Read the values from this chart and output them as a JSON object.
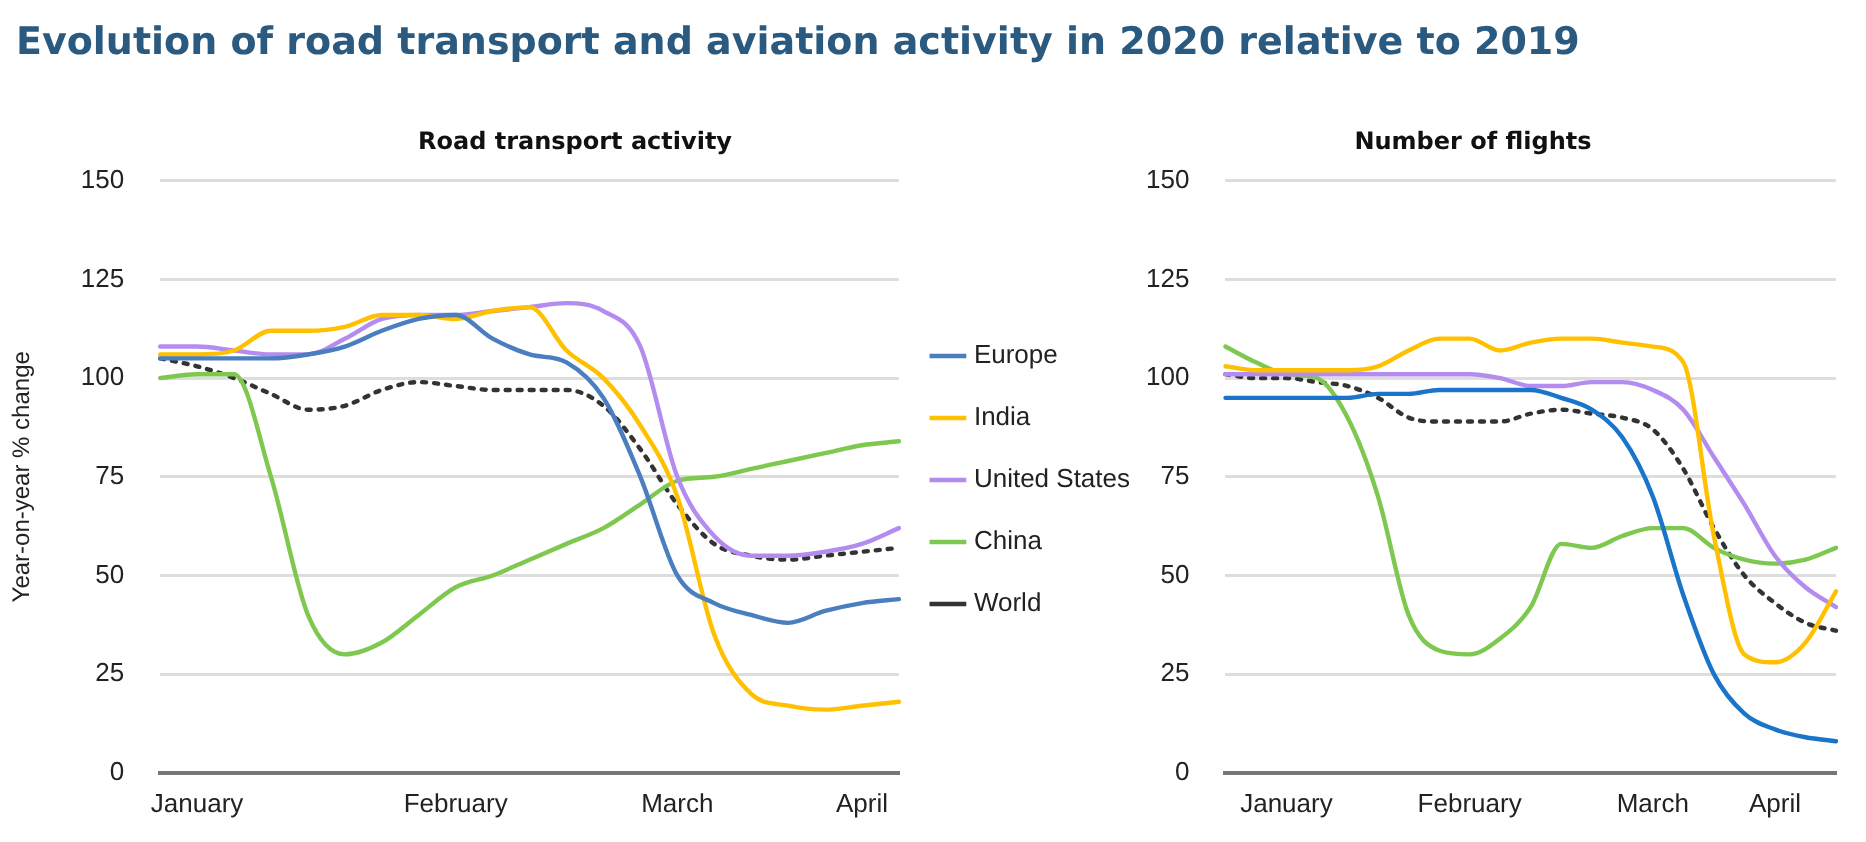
{
  "chart_data": [
    {
      "type": "line",
      "title": "Evolution of road transport and aviation activity in 2020 relative to 2019",
      "subtitle": "Road transport activity",
      "ylabel": "Year-on-year % change",
      "categories": [
        null,
        "January",
        null,
        null,
        null,
        null,
        null,
        null,
        "February",
        null,
        null,
        null,
        null,
        null,
        "March",
        null,
        null,
        null,
        null,
        "April",
        null
      ],
      "ylim": [
        0,
        150
      ],
      "yticks": [
        0,
        25,
        50,
        75,
        100,
        125,
        150
      ],
      "grid": "y",
      "legend": "right",
      "marker": "none",
      "series": [
        {
          "name": "Europe",
          "color": "#4a7ebf",
          "values": [
            105,
            105,
            105,
            105,
            106,
            108,
            112,
            115,
            116,
            110,
            106,
            104,
            95,
            75,
            50,
            43,
            40,
            38,
            41,
            43,
            44
          ]
        },
        {
          "name": "India",
          "color": "#ffc000",
          "values": [
            106,
            106,
            107,
            112,
            112,
            113,
            116,
            116,
            115,
            117,
            118,
            107,
            100,
            88,
            70,
            35,
            20,
            17,
            16,
            17,
            18
          ]
        },
        {
          "name": "United States",
          "color": "#b48cf0",
          "values": [
            108,
            108,
            107,
            106,
            106,
            110,
            115,
            116,
            116,
            117,
            118,
            119,
            117,
            108,
            75,
            60,
            55,
            55,
            56,
            58,
            62
          ]
        },
        {
          "name": "China",
          "color": "#7ec850",
          "values": [
            100,
            101,
            101,
            75,
            40,
            30,
            33,
            40,
            47,
            50,
            54,
            58,
            62,
            68,
            74,
            75,
            77,
            79,
            81,
            83,
            84
          ]
        },
        {
          "name": "World",
          "color": "#333333",
          "line_style": "dotted",
          "values": [
            105,
            103,
            100,
            96,
            92,
            93,
            97,
            99,
            98,
            97,
            97,
            97,
            93,
            82,
            68,
            58,
            55,
            54,
            55,
            56,
            57
          ]
        }
      ]
    },
    {
      "type": "line",
      "subtitle": "Number of flights",
      "categories": [
        null,
        null,
        "January",
        null,
        null,
        null,
        null,
        null,
        "February",
        null,
        null,
        null,
        null,
        null,
        "March",
        null,
        null,
        null,
        "April",
        null,
        null
      ],
      "ylim": [
        0,
        150
      ],
      "yticks": [
        0,
        25,
        50,
        75,
        100,
        125,
        150
      ],
      "grid": "y",
      "marker": "none",
      "series": [
        {
          "color": "#1a74c9",
          "values": [
            95,
            95,
            95,
            95,
            95,
            96,
            96,
            97,
            97,
            97,
            97,
            95,
            92,
            85,
            70,
            45,
            25,
            15,
            11,
            9,
            8
          ]
        },
        {
          "color": "#ffc000",
          "values": [
            103,
            102,
            102,
            102,
            102,
            103,
            107,
            110,
            110,
            107,
            109,
            110,
            110,
            109,
            108,
            104,
            60,
            30,
            28,
            33,
            46
          ]
        },
        {
          "color": "#b48cf0",
          "values": [
            101,
            101,
            101,
            101,
            101,
            101,
            101,
            101,
            101,
            100,
            98,
            98,
            99,
            99,
            97,
            92,
            80,
            68,
            55,
            47,
            42
          ]
        },
        {
          "color": "#7ec850",
          "values": [
            108,
            104,
            101,
            100,
            90,
            70,
            40,
            31,
            30,
            34,
            42,
            58,
            57,
            60,
            62,
            62,
            57,
            54,
            53,
            54,
            57
          ]
        },
        {
          "color": "#333333",
          "line_style": "dotted",
          "values": [
            101,
            100,
            100,
            99,
            98,
            95,
            90,
            89,
            89,
            89,
            91,
            92,
            91,
            90,
            87,
            77,
            62,
            50,
            43,
            38,
            36
          ]
        }
      ]
    }
  ]
}
